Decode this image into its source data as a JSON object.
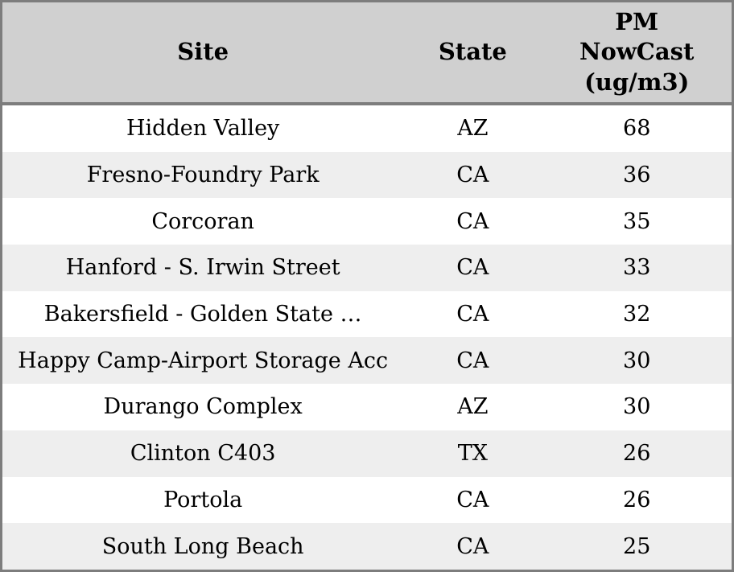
{
  "colors": {
    "header_bg": "#d0d0d0",
    "stripe_bg": "#eeeeee",
    "row_bg": "#ffffff",
    "border": "#7d7d7d",
    "text": "#000000"
  },
  "table": {
    "header": {
      "site": "Site",
      "state": "State",
      "pm": "PM\nNowCast\n(ug/m3)"
    },
    "rows": [
      {
        "site": "Hidden Valley",
        "state": "AZ",
        "pm": "68"
      },
      {
        "site": "Fresno-Foundry Park",
        "state": "CA",
        "pm": "36"
      },
      {
        "site": "Corcoran",
        "state": "CA",
        "pm": "35"
      },
      {
        "site": "Hanford - S. Irwin Street",
        "state": "CA",
        "pm": "33"
      },
      {
        "site": "Bakersfield - Golden State …",
        "state": "CA",
        "pm": "32"
      },
      {
        "site": "Happy Camp-Airport Storage Acc",
        "state": "CA",
        "pm": "30"
      },
      {
        "site": "Durango Complex",
        "state": "AZ",
        "pm": "30"
      },
      {
        "site": "Clinton C403",
        "state": "TX",
        "pm": "26"
      },
      {
        "site": "Portola",
        "state": "CA",
        "pm": "26"
      },
      {
        "site": "South Long Beach",
        "state": "CA",
        "pm": "25"
      }
    ]
  },
  "chart_data": {
    "type": "table",
    "columns": [
      "Site",
      "State",
      "PM NowCast (ug/m3)"
    ],
    "rows": [
      [
        "Hidden Valley",
        "AZ",
        68
      ],
      [
        "Fresno-Foundry Park",
        "CA",
        36
      ],
      [
        "Corcoran",
        "CA",
        35
      ],
      [
        "Hanford - S. Irwin Street",
        "CA",
        33
      ],
      [
        "Bakersfield - Golden State …",
        "CA",
        32
      ],
      [
        "Happy Camp-Airport Storage Acc",
        "CA",
        30
      ],
      [
        "Durango Complex",
        "AZ",
        30
      ],
      [
        "Clinton C403",
        "TX",
        26
      ],
      [
        "Portola",
        "CA",
        26
      ],
      [
        "South Long Beach",
        "CA",
        25
      ]
    ],
    "title": "",
    "layout_hints": {
      "striped_rows": true,
      "alignment": "center",
      "header_band": true
    }
  }
}
